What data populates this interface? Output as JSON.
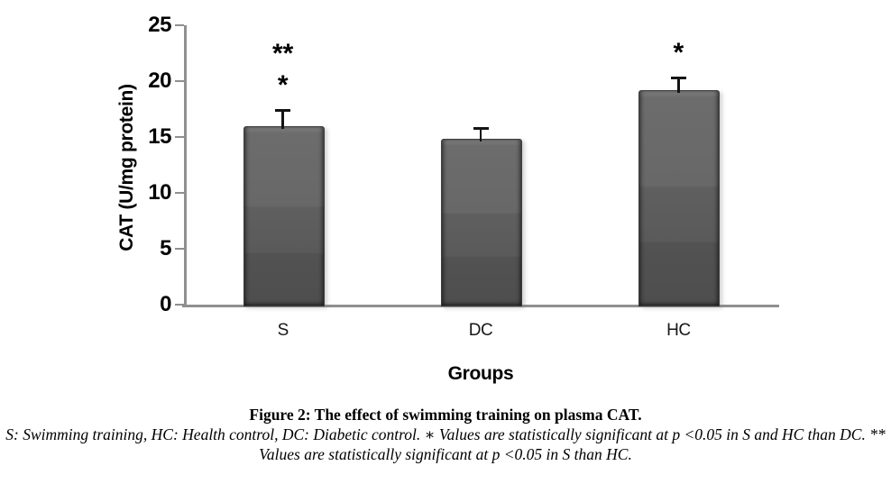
{
  "chart_data": {
    "type": "bar",
    "title": "",
    "categories": [
      "S",
      "DC",
      "HC"
    ],
    "values": [
      16.0,
      14.8,
      19.2
    ],
    "error_bars": [
      1.4,
      1.0,
      1.1
    ],
    "significance_labels": [
      [
        "**",
        "*"
      ],
      [],
      [
        "*"
      ]
    ],
    "xlabel": "Groups",
    "ylabel": "CAT (U/mg protein)",
    "ylim": [
      0,
      25
    ],
    "yticks": [
      0,
      5,
      10,
      15,
      20,
      25
    ],
    "grid": false,
    "legend": "none",
    "bar_color_top": "#6c6c6c",
    "bar_color_bottom": "#4e4e4e",
    "axis_color": "#8f8f8f",
    "text_color": "#000000"
  },
  "caption": {
    "title": "Figure 2: The effect of swimming training on plasma CAT.",
    "note_lines": [
      "S: Swimming training, HC: Health control, DC: Diabetic control. ∗ Values are statistically significant at p <0.05 in S and HC than DC. **",
      "Values are statistically significant at p <0.05 in S than HC."
    ]
  }
}
